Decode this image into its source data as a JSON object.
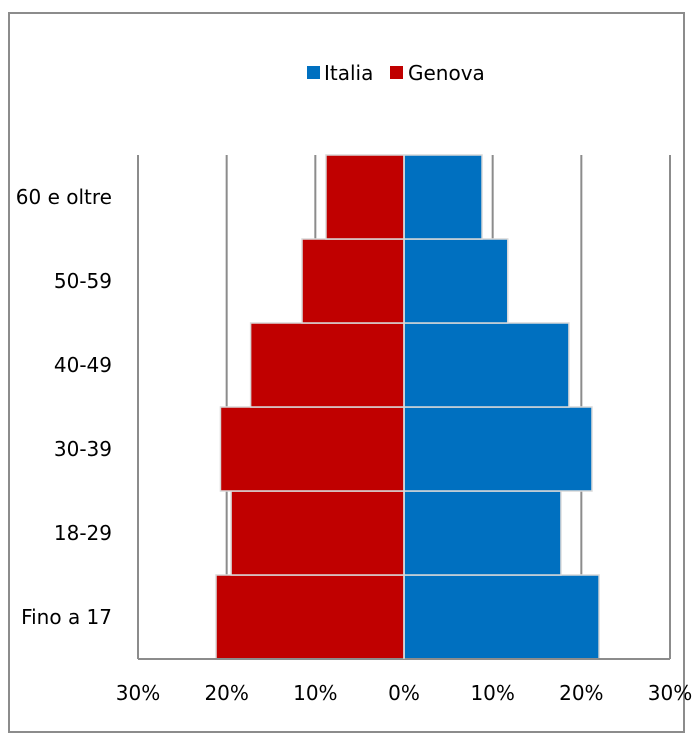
{
  "chart_data": {
    "type": "bar",
    "orientation": "horizontal",
    "subtype": "population-pyramid",
    "title": "",
    "xlabel": "",
    "ylabel": "",
    "categories": [
      "Fino a 17",
      "18-29",
      "30-39",
      "40-49",
      "50-59",
      "60 e oltre"
    ],
    "series": [
      {
        "name": "Italia",
        "color": "#0070C0",
        "side": "right",
        "values": [
          22,
          17.7,
          21.2,
          18.6,
          11.7,
          8.8
        ]
      },
      {
        "name": "Genova",
        "color": "#C00000",
        "side": "left",
        "values": [
          21.2,
          19.5,
          20.7,
          17.3,
          11.5,
          8.8
        ]
      }
    ],
    "xlim": [
      -30,
      30
    ],
    "xticks": [
      -30,
      -20,
      -10,
      0,
      10,
      20,
      30
    ],
    "xtick_labels": [
      "30%",
      "20%",
      "10%",
      "0%",
      "10%",
      "20%",
      "30%"
    ],
    "grid": true,
    "legend": {
      "position": "top",
      "entries": [
        "Italia",
        "Genova"
      ]
    }
  }
}
